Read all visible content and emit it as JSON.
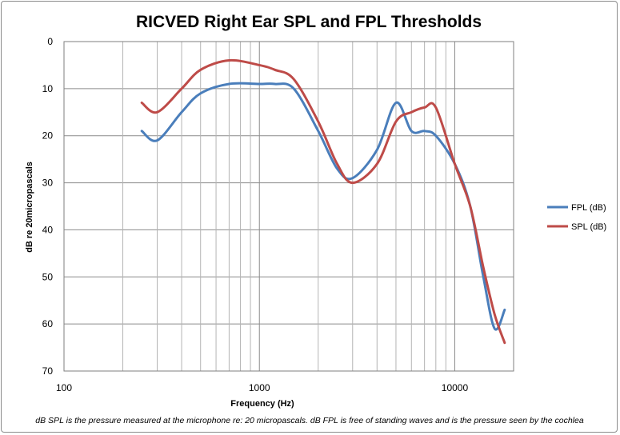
{
  "chart_data": {
    "type": "line",
    "title": "RICVED Right Ear SPL and FPL Thresholds",
    "xlabel": "Frequency (Hz)",
    "ylabel": "dB re 20micropascals",
    "x_scale": "log",
    "xlim": [
      100,
      20000
    ],
    "ylim": [
      0,
      70
    ],
    "y_inverted": true,
    "x_tick_labels": [
      "100",
      "1000",
      "10000"
    ],
    "x_tick_values": [
      100,
      1000,
      10000
    ],
    "y_ticks": [
      0,
      10,
      20,
      30,
      40,
      50,
      60,
      70
    ],
    "grid": true,
    "legend_position": "right",
    "series": [
      {
        "name": "FPL (dB)",
        "color": "#4a7ebb",
        "x": [
          250,
          300,
          400,
          500,
          700,
          1000,
          1200,
          1500,
          2000,
          2500,
          3000,
          4000,
          5000,
          6000,
          7000,
          8000,
          10000,
          12000,
          14000,
          16000,
          18000
        ],
        "y": [
          19,
          21,
          15,
          11,
          9,
          9,
          9,
          10,
          19,
          27,
          29,
          23,
          13,
          19,
          19,
          20,
          26,
          35,
          50,
          61,
          57
        ]
      },
      {
        "name": "SPL (dB)",
        "color": "#be4b48",
        "x": [
          250,
          300,
          400,
          500,
          700,
          1000,
          1200,
          1500,
          2000,
          2500,
          3000,
          4000,
          5000,
          6000,
          7000,
          8000,
          10000,
          12000,
          14000,
          16000,
          18000
        ],
        "y": [
          13,
          15,
          10,
          6,
          4,
          5,
          6,
          8,
          17,
          26,
          30,
          26,
          17,
          15,
          14,
          14,
          26,
          35,
          48,
          58,
          64
        ]
      }
    ],
    "footnote": "dB SPL is the pressure measured at the microphone re: 20 micropascals.  dB FPL is free of standing waves and is the pressure seen by the cochlea"
  }
}
